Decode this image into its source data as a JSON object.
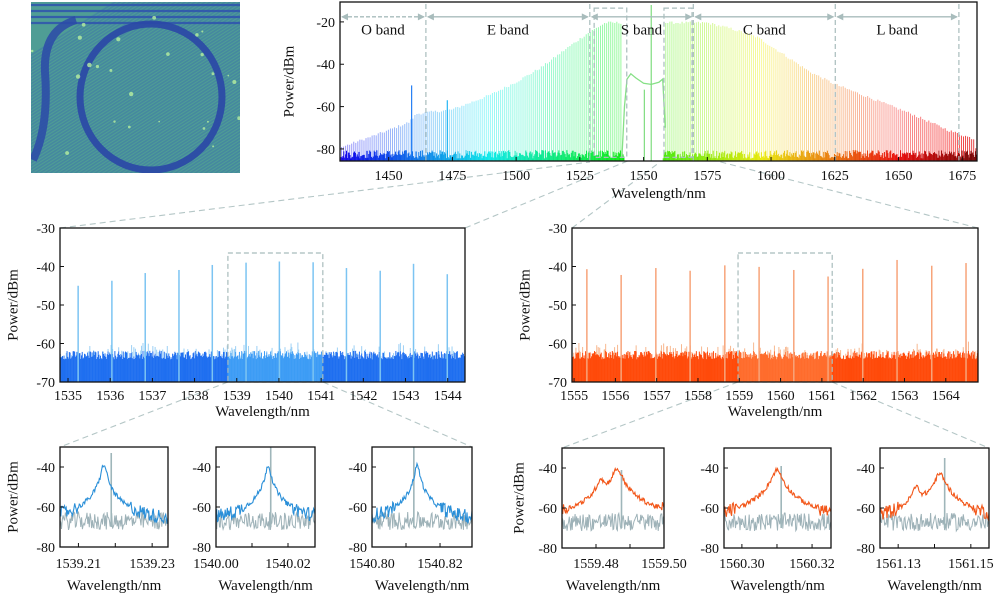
{
  "chart_data": [
    {
      "id": "overview",
      "type": "line",
      "xlabel": "Wavelength/nm",
      "ylabel": "Power/dBm",
      "xlim": [
        1430.9,
        1680.8
      ],
      "ylim": [
        -85.7,
        -10.6
      ],
      "xticks": [
        1450,
        1475,
        1500,
        1525,
        1550,
        1575,
        1600,
        1625,
        1650,
        1675
      ],
      "yticks": [
        -80,
        -60,
        -40,
        -20
      ],
      "bands": [
        {
          "label": "O band",
          "start": 1430.9,
          "end": 1464.6
        },
        {
          "label": "E band",
          "start": 1464.6,
          "end": 1528.9
        },
        {
          "label": "S band",
          "start": 1528.9,
          "end": 1569.5
        },
        {
          "label": "C band",
          "start": 1569.5,
          "end": 1625.2
        },
        {
          "label": "L band",
          "start": 1625.2,
          "end": 1673.7
        }
      ],
      "comb_spacing_nm": 0.8,
      "envelope": [
        [
          1431,
          -80
        ],
        [
          1445,
          -74
        ],
        [
          1458,
          -68
        ],
        [
          1461,
          -64
        ],
        [
          1475,
          -62
        ],
        [
          1490,
          -55
        ],
        [
          1500,
          -49
        ],
        [
          1510,
          -42
        ],
        [
          1520,
          -33
        ],
        [
          1528,
          -26
        ],
        [
          1535,
          -21
        ],
        [
          1541,
          -21
        ],
        [
          1559,
          -21
        ],
        [
          1575,
          -21
        ],
        [
          1585,
          -24
        ],
        [
          1595,
          -28
        ],
        [
          1605,
          -36
        ],
        [
          1615,
          -44
        ],
        [
          1625,
          -50
        ],
        [
          1640,
          -57
        ],
        [
          1655,
          -64
        ],
        [
          1670,
          -72
        ],
        [
          1680,
          -76
        ]
      ],
      "spurs": [
        {
          "nm": 1459,
          "dbm": -50
        },
        {
          "nm": 1473,
          "dbm": -57
        }
      ],
      "filtered_region": [
        1541.5,
        1558.5
      ],
      "filtered_trace": [
        [
          1541.5,
          -84
        ],
        [
          1542.5,
          -60
        ],
        [
          1543.5,
          -47
        ],
        [
          1545,
          -44.5
        ],
        [
          1547,
          -46.5
        ],
        [
          1550,
          -49
        ],
        [
          1553,
          -49.5
        ],
        [
          1556,
          -48.5
        ],
        [
          1557.5,
          -47
        ],
        [
          1558.5,
          -70
        ]
      ],
      "narrow_lines": [
        {
          "nm": 1553,
          "dbm": -12
        },
        {
          "nm": 1550.3,
          "dbm": -52
        }
      ],
      "zoom_boxes": [
        [
          1530.6,
          1543.4
        ],
        [
          1558.0,
          1569.0
        ]
      ]
    },
    {
      "id": "comb_blue",
      "type": "line",
      "xlabel": "Wavelength/nm",
      "ylabel": "Power/dBm",
      "xlim": [
        1534.81,
        1544.41
      ],
      "ylim": [
        -70,
        -30
      ],
      "xticks": [
        1535,
        1536,
        1537,
        1538,
        1539,
        1540,
        1541,
        1542,
        1543,
        1544
      ],
      "yticks": [
        -70,
        -60,
        -50,
        -40,
        -30
      ],
      "peaks_nm": [
        1535.24,
        1536.04,
        1536.83,
        1537.63,
        1538.42,
        1539.22,
        1540.01,
        1540.81,
        1541.6,
        1542.4,
        1543.19,
        1543.99
      ],
      "peaks_dbm": [
        -45,
        -43.7,
        -41.7,
        -40.9,
        -39.6,
        -39,
        -38.7,
        -38.9,
        -40.4,
        -41.1,
        -39.3,
        -42
      ],
      "noise_floor_dbm": -63,
      "zoom_box": [
        1538.79,
        1541.04,
        -36.5
      ],
      "colors": {
        "floor": "#1f6ff0",
        "floor_zoomed": "#3d9cf5",
        "peak": "#7cc4f2",
        "noise_top": "#9cd0f5"
      }
    },
    {
      "id": "comb_orange",
      "type": "line",
      "xlabel": "Wavelength/nm",
      "ylabel": "Power/dBm",
      "xlim": [
        1554.95,
        1564.78
      ],
      "ylim": [
        -70,
        -30
      ],
      "xticks": [
        1555,
        1556,
        1557,
        1558,
        1559,
        1560,
        1561,
        1562,
        1563,
        1564
      ],
      "yticks": [
        -70,
        -60,
        -50,
        -40,
        -30
      ],
      "peaks_nm": [
        1555.31,
        1556.14,
        1556.98,
        1557.81,
        1558.65,
        1559.48,
        1560.32,
        1561.15,
        1561.99,
        1562.82,
        1563.66,
        1564.49
      ],
      "peaks_dbm": [
        -40.7,
        -42.2,
        -40.4,
        -41.1,
        -39.7,
        -40.1,
        -40.9,
        -42.6,
        -40.6,
        -38.3,
        -39.8,
        -39.1
      ],
      "noise_floor_dbm": -63,
      "zoom_box": [
        1558.97,
        1561.25,
        -36.5
      ],
      "colors": {
        "floor": "#ff4a0a",
        "floor_zoomed": "#ff6c2c",
        "peak": "#f7a47a",
        "noise_top": "#f8b890"
      }
    },
    {
      "id": "zoom_blue_1",
      "type": "line",
      "xlabel": "Wavelength/nm",
      "ylabel": "Power/dBm",
      "xlim": [
        1539.205,
        1539.2343
      ],
      "ylim": [
        -80,
        -30
      ],
      "xticks": [
        1539.21,
        1539.23
      ],
      "xtick_labels": [
        "1539.21",
        "1539.23"
      ],
      "xticks_minor": [
        1539.22
      ],
      "yticks": [
        -80,
        -60,
        -40
      ],
      "peaks": [
        {
          "nm": 1539.2169,
          "dbm": -38.5,
          "width": 0.00055
        }
      ],
      "reference_line": {
        "nm": 1539.2189,
        "dbm": -33
      },
      "noise_floor_dbm": -68,
      "color": "#2a8fd8"
    },
    {
      "id": "zoom_blue_2",
      "type": "line",
      "xlabel": "Wavelength/nm",
      "xlim": [
        1540.0,
        1540.0275
      ],
      "ylim": [
        -80,
        -30
      ],
      "xticks": [
        1540.0,
        1540.02
      ],
      "xtick_labels": [
        "1540.00",
        "1540.02"
      ],
      "xticks_minor": [
        1540.01
      ],
      "yticks": [
        -80,
        -60,
        -40
      ],
      "peaks": [
        {
          "nm": 1540.0145,
          "dbm": -39,
          "width": 0.00055
        }
      ],
      "reference_line": {
        "nm": 1540.0152,
        "dbm": -30
      },
      "noise_floor_dbm": -68,
      "color": "#2a8fd8"
    },
    {
      "id": "zoom_blue_3",
      "type": "line",
      "xlabel": "Wavelength/nm",
      "xlim": [
        1540.8,
        1540.8294
      ],
      "ylim": [
        -80,
        -30
      ],
      "xticks": [
        1540.8,
        1540.82
      ],
      "xtick_labels": [
        "1540.80",
        "1540.82"
      ],
      "xticks_minor": [
        1540.81
      ],
      "yticks": [
        -80,
        -60,
        -40
      ],
      "peaks": [
        {
          "nm": 1540.8133,
          "dbm": -39,
          "width": 0.00055
        }
      ],
      "reference_line": {
        "nm": 1540.8123,
        "dbm": -30
      },
      "noise_floor_dbm": -68,
      "color": "#2a8fd8"
    },
    {
      "id": "zoom_orange_1",
      "type": "line",
      "xlabel": "Wavelength/nm",
      "ylabel": "Power/dBm",
      "xlim": [
        1559.47,
        1559.5
      ],
      "ylim": [
        -80,
        -30
      ],
      "xticks": [
        1559.48,
        1559.5
      ],
      "xtick_labels": [
        "1559.48",
        "1559.50"
      ],
      "xticks_minor": [
        1559.49
      ],
      "yticks": [
        -80,
        -60,
        -40
      ],
      "peaks": [
        {
          "nm": 1559.4814,
          "dbm": -46,
          "width": 0.0009
        },
        {
          "nm": 1559.4862,
          "dbm": -40.5,
          "width": 0.0012
        }
      ],
      "reference_line": {
        "nm": 1559.4875,
        "dbm": -41
      },
      "noise_floor_dbm": -68,
      "color": "#f2571a"
    },
    {
      "id": "zoom_orange_2",
      "type": "line",
      "xlabel": "Wavelength/nm",
      "xlim": [
        1560.2949,
        1560.3254
      ],
      "ylim": [
        -80,
        -30
      ],
      "xticks": [
        1560.3,
        1560.32
      ],
      "xtick_labels": [
        "1560.30",
        "1560.32"
      ],
      "xticks_minor": [
        1560.31
      ],
      "yticks": [
        -80,
        -60,
        -40
      ],
      "peaks": [
        {
          "nm": 1560.31,
          "dbm": -41,
          "width": 0.0012
        }
      ],
      "reference_line": {
        "nm": 1560.3112,
        "dbm": -39
      },
      "noise_floor_dbm": -68,
      "color": "#f2571a"
    },
    {
      "id": "zoom_orange_3",
      "type": "line",
      "xlabel": "Wavelength/nm",
      "xlim": [
        1561.125,
        1561.155
      ],
      "ylim": [
        -80,
        -30
      ],
      "xticks": [
        1561.13,
        1561.15
      ],
      "xtick_labels": [
        "1561.13",
        "1561.15"
      ],
      "xticks_minor": [
        1561.14
      ],
      "yticks": [
        -80,
        -60,
        -40
      ],
      "peaks": [
        {
          "nm": 1561.135,
          "dbm": -50,
          "width": 0.0009
        },
        {
          "nm": 1561.1415,
          "dbm": -43,
          "width": 0.0012
        }
      ],
      "reference_line": {
        "nm": 1561.1428,
        "dbm": -35
      },
      "noise_floor_dbm": -68,
      "color": "#f2571a"
    }
  ]
}
